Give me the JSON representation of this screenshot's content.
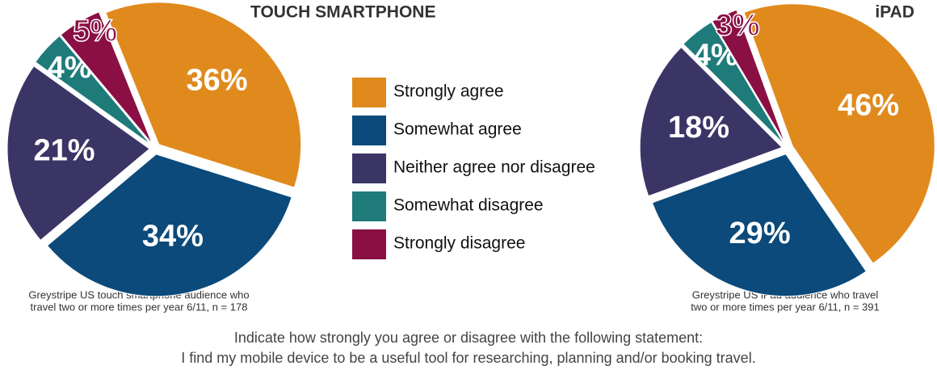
{
  "chart_data": [
    {
      "type": "pie",
      "title": "TOUCH SMARTPHONE",
      "categories": [
        "Strongly agree",
        "Somewhat agree",
        "Neither agree nor disagree",
        "Somewhat disagree",
        "Strongly disagree"
      ],
      "values": [
        36,
        34,
        21,
        4,
        5
      ],
      "value_labels": [
        "36%",
        "34%",
        "21%",
        "4%",
        "5%"
      ],
      "colors": [
        "#e08a1e",
        "#0b4a7a",
        "#3b3566",
        "#1f7a7a",
        "#8a0f45"
      ],
      "note": [
        "Greystripe US touch smartphone audience who",
        "travel two or more times per year 6/11, n = 178"
      ]
    },
    {
      "type": "pie",
      "title": "iPAD",
      "categories": [
        "Strongly agree",
        "Somewhat agree",
        "Neither agree nor disagree",
        "Somewhat disagree",
        "Strongly disagree"
      ],
      "values": [
        46,
        29,
        18,
        4,
        3
      ],
      "value_labels": [
        "46%",
        "29%",
        "18%",
        "4%",
        "3%"
      ],
      "colors": [
        "#e08a1e",
        "#0b4a7a",
        "#3b3566",
        "#1f7a7a",
        "#8a0f45"
      ],
      "note": [
        "Greystripe US iPad audience who travel",
        "two or more times per year 6/11, n = 391"
      ]
    }
  ],
  "footer": [
    "Indicate how strongly you agree or disagree with the following statement:",
    "I find my mobile device to be a useful tool for researching, planning and/or booking travel."
  ]
}
